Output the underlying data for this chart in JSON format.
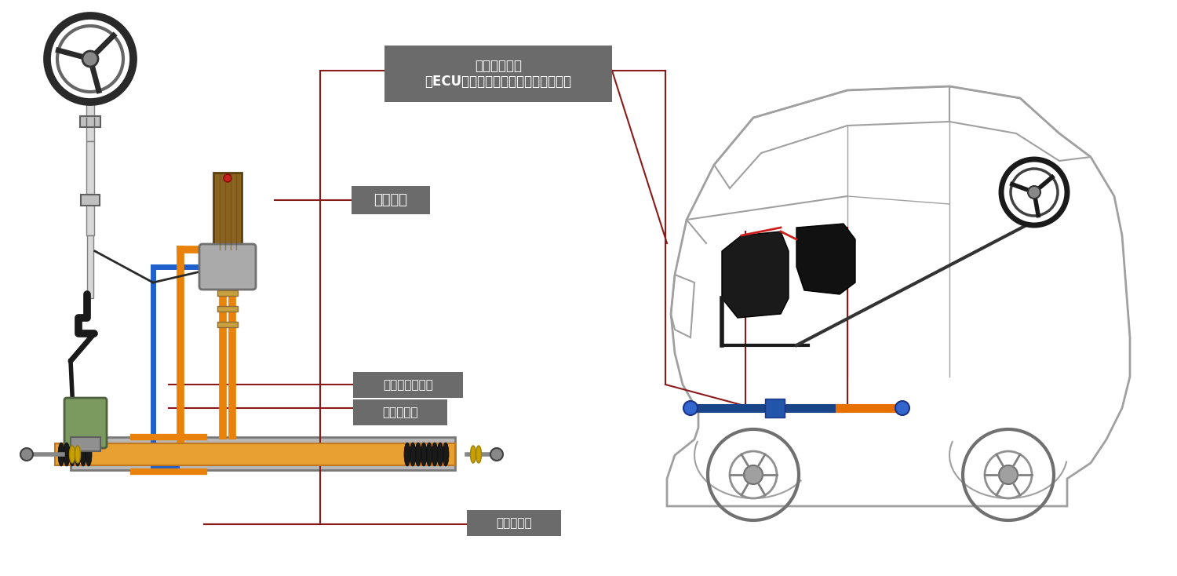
{
  "background_color": "#ffffff",
  "label_bg_color": "#6b6b6b",
  "label_text_color": "#ffffff",
  "labels": {
    "power_pack": "パワーパック\n（ECU、モーター、ポンプ、タンク）",
    "piping": "　配管　",
    "torque_sensor": "トルクセンサー",
    "cylinder": "シリンダー",
    "valve": "速調バルブ"
  },
  "line_color_red": "#8B1A1A",
  "line_color_orange": "#E8820A",
  "line_color_blue": "#2060CC",
  "rack_color": "#E8A030",
  "rack_outline": "#C07820",
  "dark_gray": "#404040",
  "medium_gray": "#888888",
  "light_gray": "#cccccc",
  "green_part": "#8BA870",
  "car_outline": "#a0a0a0"
}
